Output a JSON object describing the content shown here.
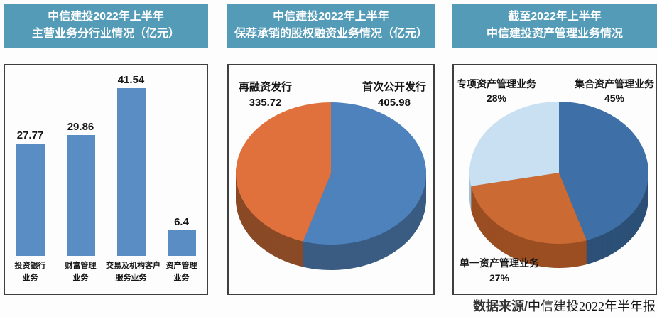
{
  "colors": {
    "header_bg": "#549BB8",
    "header_text": "#FFFFFF",
    "box_border": "#3F3F3F",
    "bar_blue": "#5B8DC5",
    "pie_blue": "#4D82BC",
    "pie_orange": "#E0713D",
    "pie_dark_blue": "#3E6FA6",
    "pie_light_blue": "#C9E0F2"
  },
  "panels": [
    {
      "title_line1": "中信建投2022年上半年",
      "title_line2": "主营业务分行业情况（亿元）"
    },
    {
      "title_line1": "中信建投2022年上半年",
      "title_line2": "保荐承销的股权融资业务情况（亿元）"
    },
    {
      "title_line1": "截至2022年上半年",
      "title_line2": "中信建投资产管理业务情况"
    }
  ],
  "source": {
    "prefix": "数据来源/",
    "text": "中信建投2022年半年报"
  },
  "chart_data": [
    {
      "type": "bar",
      "title": "中信建投2022年上半年主营业务分行业情况（亿元）",
      "unit": "亿元",
      "categories": [
        [
          "投资银行",
          "业务"
        ],
        [
          "财富管理",
          "业务"
        ],
        [
          "交易及机构客户",
          "服务业务"
        ],
        [
          "资产管理",
          "业务"
        ]
      ],
      "values": [
        27.77,
        29.86,
        41.54,
        6.4
      ],
      "value_labels": [
        "27.77",
        "29.86",
        "41.54",
        "6.4"
      ],
      "bar_color": "#5B8DC5",
      "ylim": [
        0,
        47
      ],
      "grid": false,
      "legend": false
    },
    {
      "type": "pie",
      "title": "中信建投2022年上半年保荐承销的股权融资业务情况（亿元）",
      "unit": "亿元",
      "style": "3d",
      "start_angle": 0,
      "slices": [
        {
          "name": "首次公开发行",
          "value": 405.98,
          "value_label": "405.98",
          "color": "#4D82BC",
          "dark_color": "#3A5C82"
        },
        {
          "name": "再融资发行",
          "value": 335.72,
          "value_label": "335.72",
          "color": "#E0713D",
          "dark_color": "#8A4A26"
        }
      ]
    },
    {
      "type": "pie",
      "title": "截至2022年上半年中信建投资产管理业务情况",
      "unit": "%",
      "style": "3d",
      "start_angle": 0,
      "slices": [
        {
          "name": "集合资产管理业务",
          "value": 45,
          "value_label": "45%",
          "color": "#3E6FA6",
          "dark_color": "#2C5077"
        },
        {
          "name": "单一资产管理业务",
          "value": 27,
          "value_label": "27%",
          "color": "#CB6A33",
          "dark_color": "#9A4E22"
        },
        {
          "name": "专项资产管理业务",
          "value": 28,
          "value_label": "28%",
          "color": "#C9E0F2",
          "dark_color": "#9FC2DB"
        }
      ]
    }
  ]
}
